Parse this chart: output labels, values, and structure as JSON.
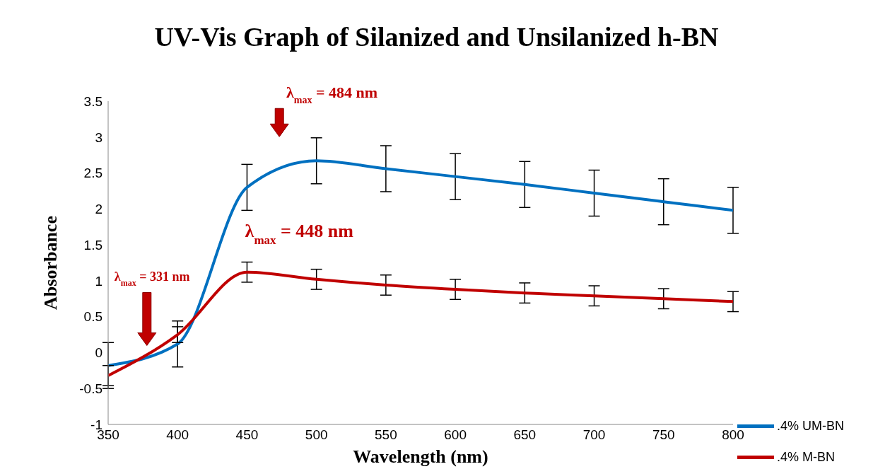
{
  "chart_data": {
    "type": "line",
    "title": "UV-Vis Graph of Silanized and Unsilanized h-BN",
    "xlabel": "Wavelength (nm)",
    "ylabel": "Absorbance",
    "x": [
      350,
      400,
      450,
      500,
      550,
      600,
      650,
      700,
      750,
      800
    ],
    "series": [
      {
        "name": ".4% UM-BN",
        "color": "#0070c0",
        "values": [
          -0.18,
          0.12,
          2.3,
          2.67,
          2.56,
          2.45,
          2.34,
          2.22,
          2.1,
          1.98
        ],
        "errors": [
          0.32,
          0.32,
          0.32,
          0.32,
          0.32,
          0.32,
          0.32,
          0.32,
          0.32,
          0.32
        ]
      },
      {
        "name": ".4% M-BN",
        "color": "#c00000",
        "values": [
          -0.32,
          0.25,
          1.12,
          1.02,
          0.94,
          0.88,
          0.83,
          0.79,
          0.75,
          0.71
        ],
        "errors": [
          0.14,
          0.11,
          0.14,
          0.14,
          0.14,
          0.14,
          0.14,
          0.14,
          0.14,
          0.14
        ]
      }
    ],
    "xlim": [
      350,
      800
    ],
    "xticks": [
      350,
      400,
      450,
      500,
      550,
      600,
      650,
      700,
      750,
      800
    ],
    "ylim": [
      -1,
      3.5
    ],
    "yticks": [
      -1,
      -0.5,
      0,
      0.5,
      1,
      1.5,
      2,
      2.5,
      3,
      3.5
    ],
    "grid": false,
    "legend": "bottom right",
    "marker": "none",
    "line_style": "solid",
    "annotations": [
      "λ$_{max}$= 484 nm",
      "λ$_{max}$= 448 nm",
      "λ$_{max}$ = 331 nm"
    ]
  }
}
